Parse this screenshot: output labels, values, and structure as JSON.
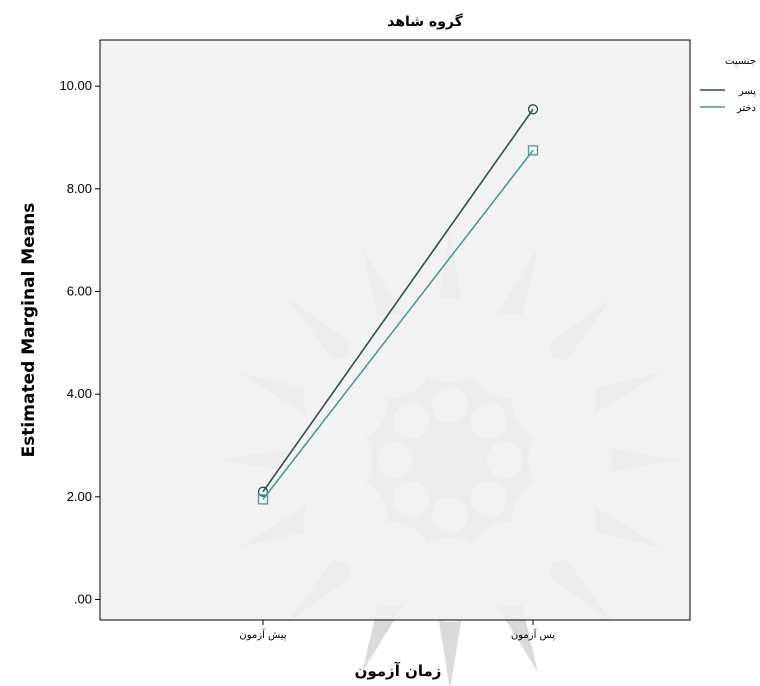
{
  "chart_data": {
    "type": "line",
    "title": "گروه شاهد",
    "xlabel": "زمان آزمون",
    "ylabel": "Estimated Marginal Means",
    "categories": [
      "پیش آزمون",
      "پس آزمون"
    ],
    "ylim": [
      -0.4,
      10.9
    ],
    "yticks": [
      ".00",
      "2.00",
      "4.00",
      "6.00",
      "8.00",
      "10.00"
    ],
    "legend": {
      "title": "جنسیت",
      "position": "right"
    },
    "series": [
      {
        "name": "پسر",
        "values": [
          2.1,
          9.55
        ],
        "color": "#2f4f4f",
        "marker": "circle"
      },
      {
        "name": "دختر",
        "values": [
          1.95,
          8.75
        ],
        "color": "#4a9a9a",
        "marker": "square"
      }
    ],
    "colors": {
      "plot_background": "#f0f0f0",
      "watermark": "#bdbdbd"
    }
  }
}
